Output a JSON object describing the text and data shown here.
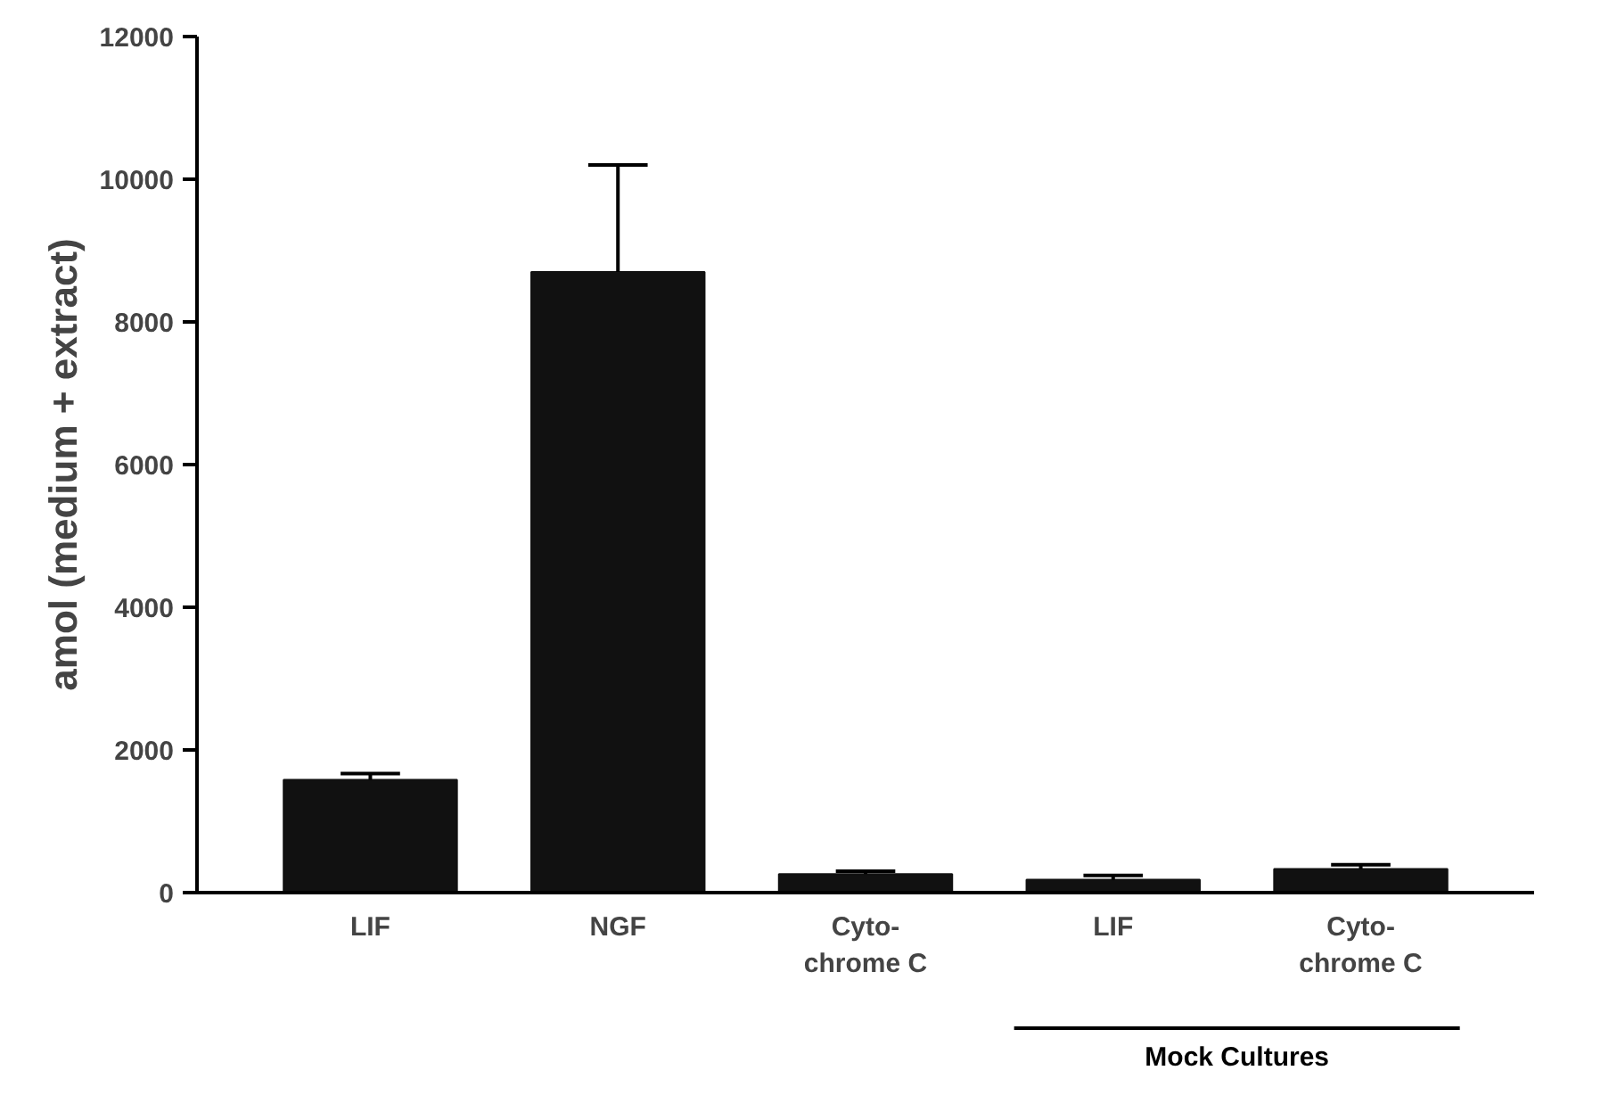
{
  "chart_data": {
    "type": "bar",
    "ylabel": "amol (medium + extract)",
    "categories": [
      "LIF",
      "NGF",
      "Cyto-\nchrome C",
      "LIF",
      "Cyto-\nchrome C"
    ],
    "values": [
      1580,
      8700,
      260,
      180,
      330
    ],
    "errors": [
      [
        1580,
        1670
      ],
      [
        8700,
        10200
      ],
      [
        260,
        300
      ],
      [
        180,
        240
      ],
      [
        330,
        390
      ]
    ],
    "color": "#111111",
    "ylim": [
      0,
      12000
    ],
    "yticks": [
      0,
      2000,
      4000,
      6000,
      8000,
      10000,
      12000
    ],
    "grid": false,
    "annotations": [
      "Mock Cultures"
    ]
  }
}
